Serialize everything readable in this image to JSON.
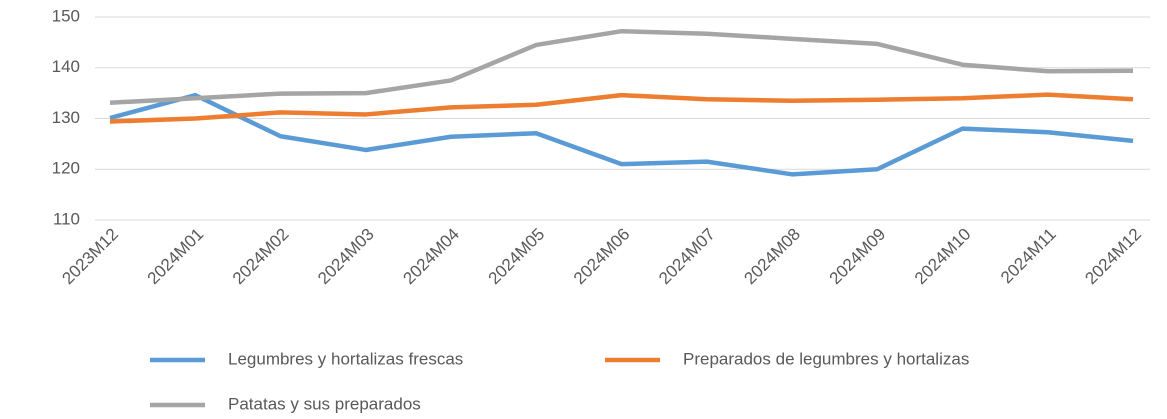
{
  "chart_data": {
    "type": "line",
    "categories": [
      "2023M12",
      "2024M01",
      "2024M02",
      "2024M03",
      "2024M04",
      "2024M05",
      "2024M06",
      "2024M07",
      "2024M08",
      "2024M09",
      "2024M10",
      "2024M11",
      "2024M12"
    ],
    "series": [
      {
        "name": "Legumbres y hortalizas frescas",
        "color": "#5b9bd5",
        "values": [
          130.1,
          134.6,
          126.5,
          123.8,
          126.4,
          127.1,
          121,
          121.5,
          119,
          120,
          128,
          127.3,
          125.6
        ]
      },
      {
        "name": "Preparados de legumbres y hortalizas",
        "color": "#ed7d31",
        "values": [
          129.4,
          130,
          131.2,
          130.8,
          132.2,
          132.7,
          134.6,
          133.8,
          133.5,
          133.7,
          134,
          134.7,
          133.8
        ]
      },
      {
        "name": "Patatas y sus preparados",
        "color": "#a5a5a5",
        "values": [
          133.1,
          134,
          134.9,
          135,
          137.5,
          144.5,
          147.2,
          146.7,
          145.7,
          144.7,
          140.6,
          139.3,
          139.4
        ]
      }
    ],
    "ylim": [
      110,
      150
    ],
    "yticks": [
      110,
      120,
      130,
      140,
      150
    ],
    "grid": true
  }
}
